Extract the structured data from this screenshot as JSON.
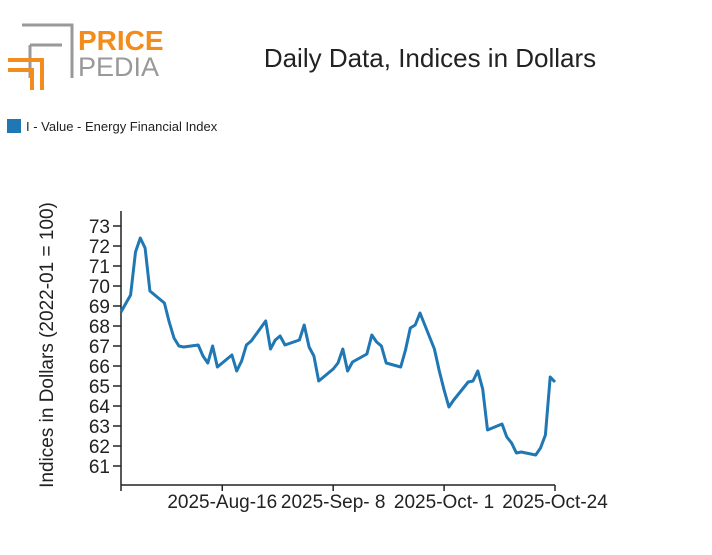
{
  "logo": {
    "line1": "PRICE",
    "line2": "PEDIA"
  },
  "chart_data": {
    "type": "line",
    "title": "Daily Data, Indices in Dollars",
    "y_label": "Indices in Dollars (2022-01 = 100)",
    "x": [
      "2025-07-26",
      "2025-07-28",
      "2025-07-29",
      "2025-07-30",
      "2025-07-31",
      "2025-08-01",
      "2025-08-04",
      "2025-08-05",
      "2025-08-06",
      "2025-08-07",
      "2025-08-08",
      "2025-08-11",
      "2025-08-12",
      "2025-08-13",
      "2025-08-14",
      "2025-08-15",
      "2025-08-18",
      "2025-08-19",
      "2025-08-20",
      "2025-08-21",
      "2025-08-22",
      "2025-08-25",
      "2025-08-26",
      "2025-08-27",
      "2025-08-28",
      "2025-08-29",
      "2025-09-01",
      "2025-09-02",
      "2025-09-03",
      "2025-09-04",
      "2025-09-05",
      "2025-09-08",
      "2025-09-09",
      "2025-09-10",
      "2025-09-11",
      "2025-09-12",
      "2025-09-15",
      "2025-09-16",
      "2025-09-17",
      "2025-09-18",
      "2025-09-19",
      "2025-09-22",
      "2025-09-23",
      "2025-09-24",
      "2025-09-25",
      "2025-09-26",
      "2025-09-29",
      "2025-09-30",
      "2025-10-01",
      "2025-10-02",
      "2025-10-03",
      "2025-10-06",
      "2025-10-07",
      "2025-10-08",
      "2025-10-09",
      "2025-10-10",
      "2025-10-13",
      "2025-10-14",
      "2025-10-15",
      "2025-10-16",
      "2025-10-17",
      "2025-10-20",
      "2025-10-21",
      "2025-10-22",
      "2025-10-23",
      "2025-10-24"
    ],
    "series": [
      {
        "name": "I - Value - Energy Financial Index",
        "color": "#1f77b4",
        "values": [
          68.7,
          69.55,
          71.7,
          72.4,
          71.9,
          69.75,
          69.15,
          68.2,
          67.4,
          67.0,
          66.95,
          67.05,
          66.5,
          66.15,
          67.0,
          65.95,
          66.55,
          65.75,
          66.25,
          67.05,
          67.25,
          68.25,
          66.85,
          67.3,
          67.5,
          67.05,
          67.3,
          68.05,
          66.95,
          66.5,
          65.25,
          65.85,
          66.15,
          66.85,
          65.75,
          66.2,
          66.6,
          67.55,
          67.2,
          67.0,
          66.15,
          65.95,
          66.8,
          67.9,
          68.05,
          68.65,
          66.85,
          65.75,
          64.8,
          63.95,
          64.3,
          65.2,
          65.25,
          65.75,
          64.85,
          62.8,
          63.1,
          62.45,
          62.15,
          61.65,
          61.7,
          61.55,
          61.9,
          62.55,
          65.45,
          65.2
        ]
      }
    ],
    "xlim": [
      "2025-07-26",
      "2025-10-24"
    ],
    "xticks": [
      {
        "value": "2025-08-16",
        "label": "2025-Aug-16"
      },
      {
        "value": "2025-09-08",
        "label": "2025-Sep- 8"
      },
      {
        "value": "2025-10-01",
        "label": "2025-Oct- 1"
      },
      {
        "value": "2025-10-24",
        "label": "2025-Oct-24"
      }
    ],
    "ylim": [
      60.05,
      73.75
    ],
    "yticks": [
      61,
      62,
      63,
      64,
      65,
      66,
      67,
      68,
      69,
      70,
      71,
      72,
      73
    ],
    "grid": false
  }
}
